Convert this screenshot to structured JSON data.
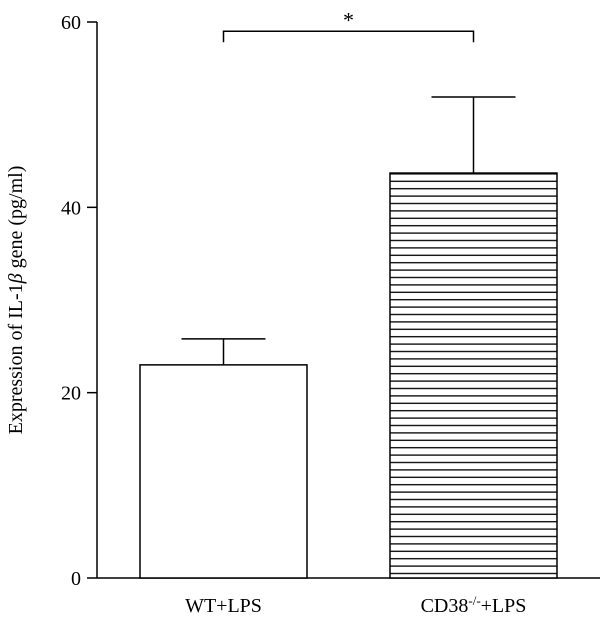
{
  "chart_data": {
    "type": "bar",
    "title": "",
    "xlabel": "",
    "ylabel_parts": [
      "Expression of IL-1",
      "β",
      " gene (pg/ml)"
    ],
    "ylim": [
      0,
      60
    ],
    "yticks": [
      0,
      20,
      40,
      60
    ],
    "categories": [
      {
        "label": "WT+LPS",
        "sup": "",
        "label_after": ""
      },
      {
        "label": "CD38",
        "sup": "-/-",
        "label_after": "+LPS"
      }
    ],
    "values": [
      23,
      43.7
    ],
    "errors": [
      2.8,
      8.2
    ],
    "fills": [
      "solid",
      "horizontal-hatch"
    ],
    "significance": {
      "between": [
        0,
        1
      ],
      "label": "*",
      "y": 59
    },
    "colors": {
      "bar_fill": "#ffffff",
      "stroke": "#000000"
    }
  }
}
